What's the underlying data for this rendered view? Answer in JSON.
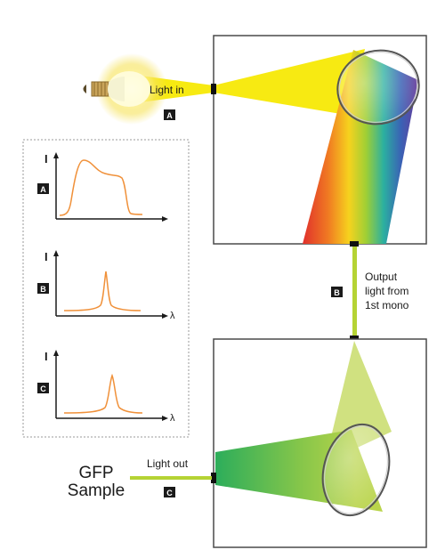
{
  "labels": {
    "light_in": "Light in",
    "output_light": [
      "Output",
      "light from",
      "1st mono"
    ],
    "light_out": "Light out",
    "sample": [
      "GFP",
      "Sample"
    ]
  },
  "badges": {
    "a": "A",
    "b": "B",
    "c": "C"
  },
  "spectra": {
    "axis_y": "I",
    "axis_x": "λ",
    "a_badge": "A",
    "b_badge": "B",
    "c_badge": "C"
  },
  "colors": {
    "light_yellow": "#f7ea12",
    "fiber_green": "#b5d334",
    "spectrum_curve": "#f0913a",
    "badge_bg": "#1a1a1a",
    "box_border": "#4a4a4a",
    "dotted_border": "#9a9a9a"
  },
  "icons": {
    "lamp": "light-bulb-icon",
    "lens": "lens-icon"
  }
}
